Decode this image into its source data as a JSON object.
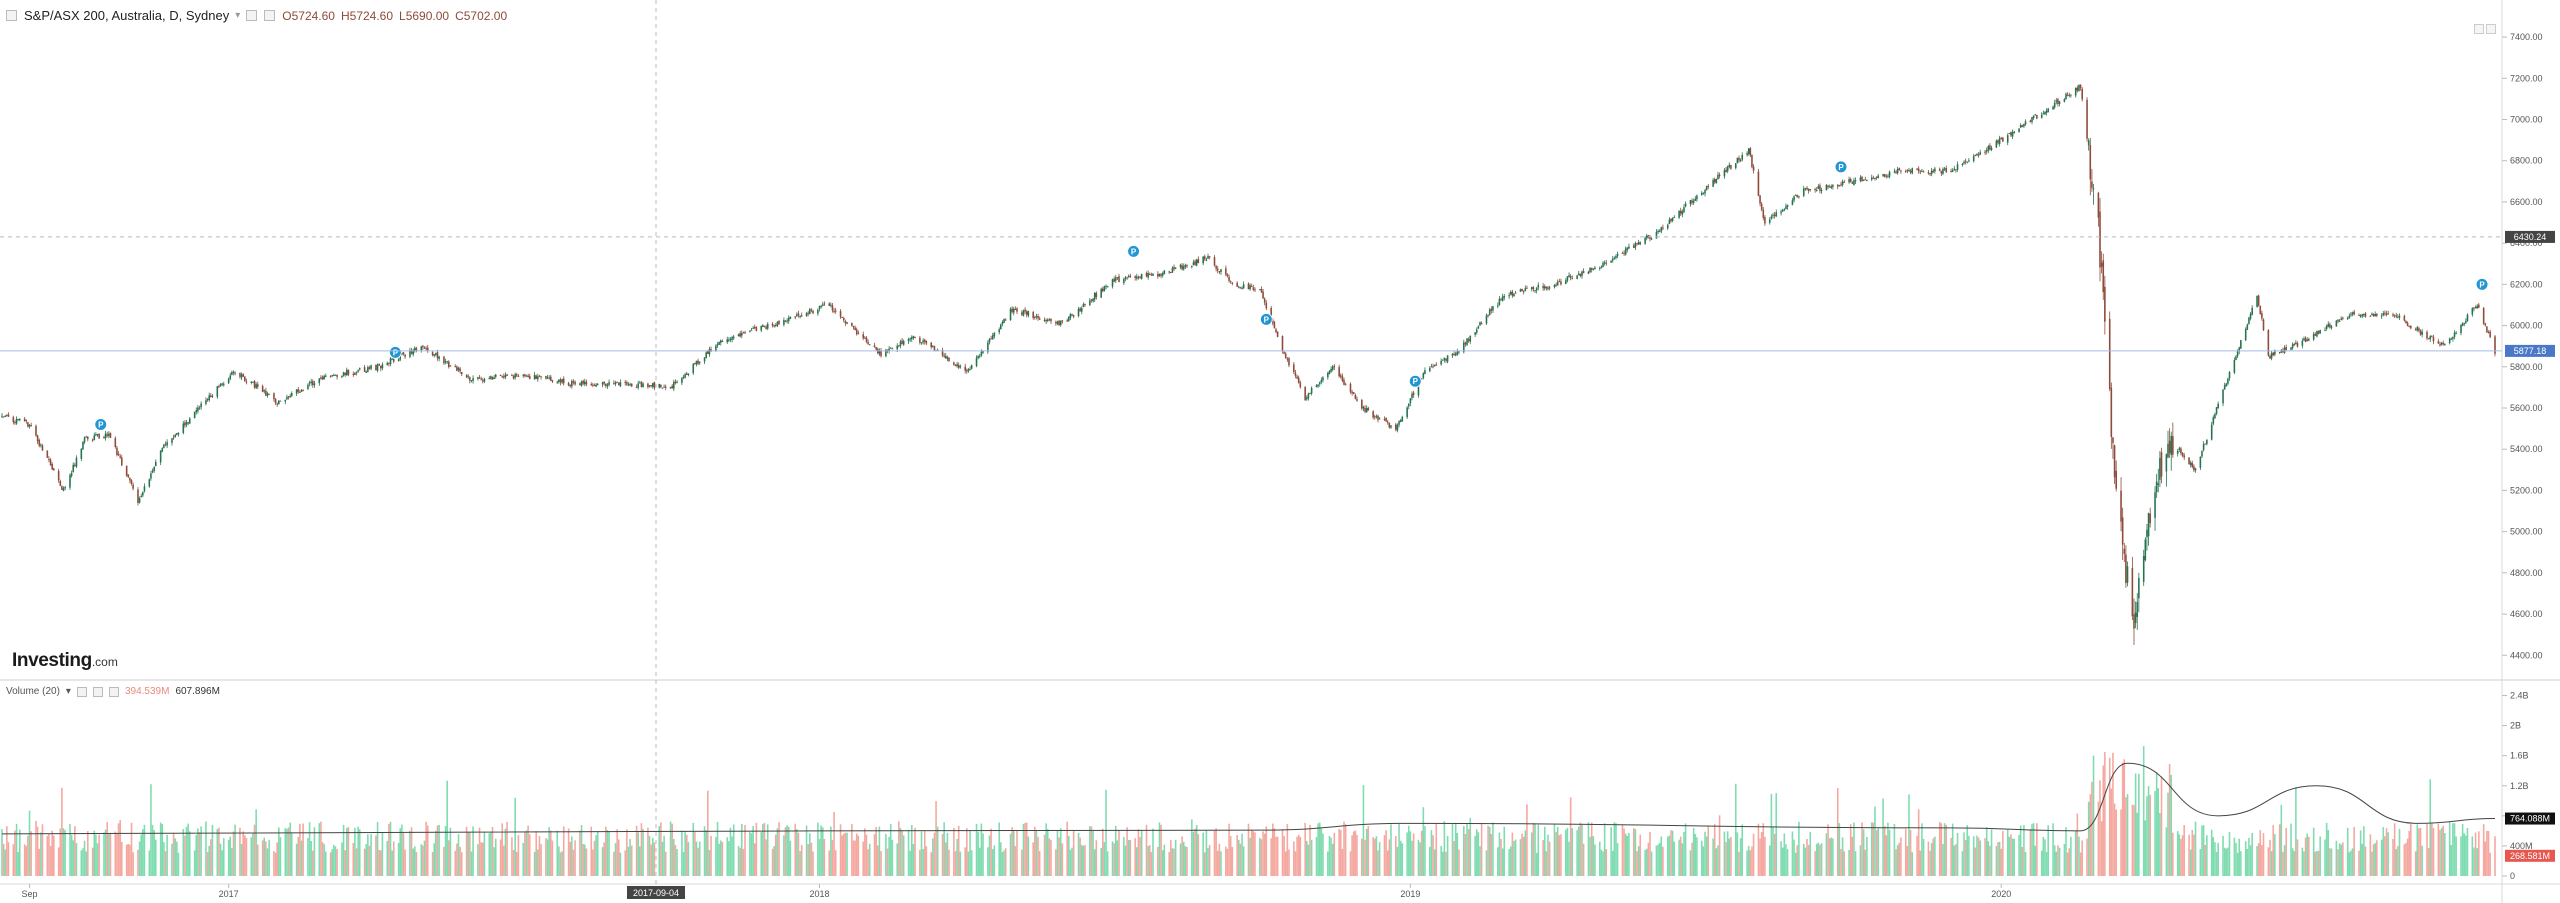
{
  "legend": {
    "symbol": "S&P/ASX 200, Australia, D, Sydney",
    "open": "O5724.60",
    "high": "H5724.60",
    "low": "L5690.00",
    "close": "C5702.00"
  },
  "brand": {
    "name": "Investing",
    "suffix": ".com"
  },
  "crosshair": {
    "date_label": "2017-09-04",
    "price_label": "6430.24",
    "price": 6430.24
  },
  "last_price": {
    "label": "5877.18",
    "value": 5877.18
  },
  "volume_panel": {
    "title": "Volume (20)",
    "value1": "394.539M",
    "value2": "607.896M",
    "ma_label": "764.088M",
    "ma_value": 764.088,
    "last_label": "268.581M",
    "last_value": 268.581
  },
  "colors": {
    "up": "#26734f",
    "down": "#8e4a3a",
    "vol_up": "#7fdcb0",
    "vol_down": "#f4a89f",
    "ma_line": "#444444",
    "last_price_bg": "#4a78c8",
    "crosshair_bg": "#444444",
    "signal": "#2196d3"
  },
  "chart_data": [
    {
      "type": "candlestick",
      "title": "S&P/ASX 200, Australia, D, Sydney",
      "price_ticks": [
        "7400.00",
        "7200.00",
        "7000.00",
        "6800.00",
        "6600.00",
        "6400.00",
        "6200.00",
        "6000.00",
        "5800.00",
        "5600.00",
        "5400.00",
        "5200.00",
        "5000.00",
        "4800.00",
        "4600.00",
        "4400.00"
      ],
      "ylim": [
        4280,
        7580
      ],
      "x_ticks": [
        "Sep",
        "2017",
        "2018",
        "2019",
        "2020"
      ],
      "key_points": [
        {
          "date": "2016-08-15",
          "close": 5560
        },
        {
          "date": "2016-09-01",
          "close": 5520
        },
        {
          "date": "2016-09-22",
          "close": 5200
        },
        {
          "date": "2016-10-05",
          "close": 5450
        },
        {
          "date": "2016-10-20",
          "close": 5470
        },
        {
          "date": "2016-11-07",
          "close": 5150
        },
        {
          "date": "2016-11-22",
          "close": 5400
        },
        {
          "date": "2016-12-15",
          "close": 5600
        },
        {
          "date": "2017-01-05",
          "close": 5780
        },
        {
          "date": "2017-02-01",
          "close": 5630
        },
        {
          "date": "2017-03-01",
          "close": 5750
        },
        {
          "date": "2017-04-05",
          "close": 5800
        },
        {
          "date": "2017-05-01",
          "close": 5900
        },
        {
          "date": "2017-06-01",
          "close": 5740
        },
        {
          "date": "2017-07-03",
          "close": 5760
        },
        {
          "date": "2017-08-01",
          "close": 5720
        },
        {
          "date": "2017-09-01",
          "close": 5720
        },
        {
          "date": "2017-10-02",
          "close": 5700
        },
        {
          "date": "2017-11-01",
          "close": 5920
        },
        {
          "date": "2017-12-01",
          "close": 6000
        },
        {
          "date": "2018-01-08",
          "close": 6100
        },
        {
          "date": "2018-02-09",
          "close": 5860
        },
        {
          "date": "2018-03-01",
          "close": 5950
        },
        {
          "date": "2018-04-03",
          "close": 5780
        },
        {
          "date": "2018-05-01",
          "close": 6080
        },
        {
          "date": "2018-06-01",
          "close": 6010
        },
        {
          "date": "2018-07-02",
          "close": 6220
        },
        {
          "date": "2018-08-01",
          "close": 6250
        },
        {
          "date": "2018-08-30",
          "close": 6330
        },
        {
          "date": "2018-09-14",
          "close": 6200
        },
        {
          "date": "2018-10-01",
          "close": 6180
        },
        {
          "date": "2018-10-15",
          "close": 5880
        },
        {
          "date": "2018-10-29",
          "close": 5650
        },
        {
          "date": "2018-11-15",
          "close": 5800
        },
        {
          "date": "2018-12-03",
          "close": 5600
        },
        {
          "date": "2018-12-24",
          "close": 5500
        },
        {
          "date": "2019-01-10",
          "close": 5770
        },
        {
          "date": "2019-02-01",
          "close": 5880
        },
        {
          "date": "2019-03-01",
          "close": 6150
        },
        {
          "date": "2019-04-01",
          "close": 6200
        },
        {
          "date": "2019-05-01",
          "close": 6300
        },
        {
          "date": "2019-06-03",
          "close": 6450
        },
        {
          "date": "2019-07-01",
          "close": 6650
        },
        {
          "date": "2019-07-30",
          "close": 6850
        },
        {
          "date": "2019-08-09",
          "close": 6500
        },
        {
          "date": "2019-09-01",
          "close": 6650
        },
        {
          "date": "2019-10-01",
          "close": 6700
        },
        {
          "date": "2019-11-01",
          "close": 6750
        },
        {
          "date": "2019-12-02",
          "close": 6750
        },
        {
          "date": "2020-01-02",
          "close": 6900
        },
        {
          "date": "2020-02-20",
          "close": 7160
        },
        {
          "date": "2020-03-02",
          "close": 6450
        },
        {
          "date": "2020-03-12",
          "close": 5300
        },
        {
          "date": "2020-03-23",
          "close": 4550
        },
        {
          "date": "2020-04-01",
          "close": 5050
        },
        {
          "date": "2020-04-15",
          "close": 5450
        },
        {
          "date": "2020-05-01",
          "close": 5300
        },
        {
          "date": "2020-06-08",
          "close": 6150
        },
        {
          "date": "2020-06-15",
          "close": 5850
        },
        {
          "date": "2020-07-01",
          "close": 5900
        },
        {
          "date": "2020-08-03",
          "close": 6050
        },
        {
          "date": "2020-09-01",
          "close": 6050
        },
        {
          "date": "2020-10-01",
          "close": 5900
        },
        {
          "date": "2020-10-22",
          "close": 6100
        },
        {
          "date": "2020-11-02",
          "close": 5877
        }
      ],
      "signal_markers": [
        {
          "date": "2016-10-15",
          "price": 5520
        },
        {
          "date": "2017-04-15",
          "price": 5870
        },
        {
          "date": "2018-07-15",
          "price": 6360
        },
        {
          "date": "2018-10-05",
          "price": 6030
        },
        {
          "date": "2019-01-05",
          "price": 5730
        },
        {
          "date": "2019-09-25",
          "price": 6770
        },
        {
          "date": "2020-10-25",
          "price": 6200
        }
      ]
    },
    {
      "type": "bar",
      "title": "Volume (20)",
      "volume_ticks": [
        "2.4B",
        "2B",
        "1.6B",
        "1.2B",
        "800M",
        "400M",
        "0"
      ],
      "ylim": [
        0,
        2500
      ],
      "unit": "M",
      "typical_volume_m": 560,
      "ma_key_points": [
        {
          "date": "2016-08-15",
          "value": 560
        },
        {
          "date": "2018-01-01",
          "value": 600
        },
        {
          "date": "2018-10-01",
          "value": 610
        },
        {
          "date": "2019-01-01",
          "value": 700
        },
        {
          "date": "2019-12-01",
          "value": 640
        },
        {
          "date": "2020-02-20",
          "value": 600
        },
        {
          "date": "2020-03-20",
          "value": 1500
        },
        {
          "date": "2020-05-15",
          "value": 800
        },
        {
          "date": "2020-07-15",
          "value": 1200
        },
        {
          "date": "2020-09-15",
          "value": 700
        },
        {
          "date": "2020-11-02",
          "value": 764
        }
      ]
    }
  ]
}
